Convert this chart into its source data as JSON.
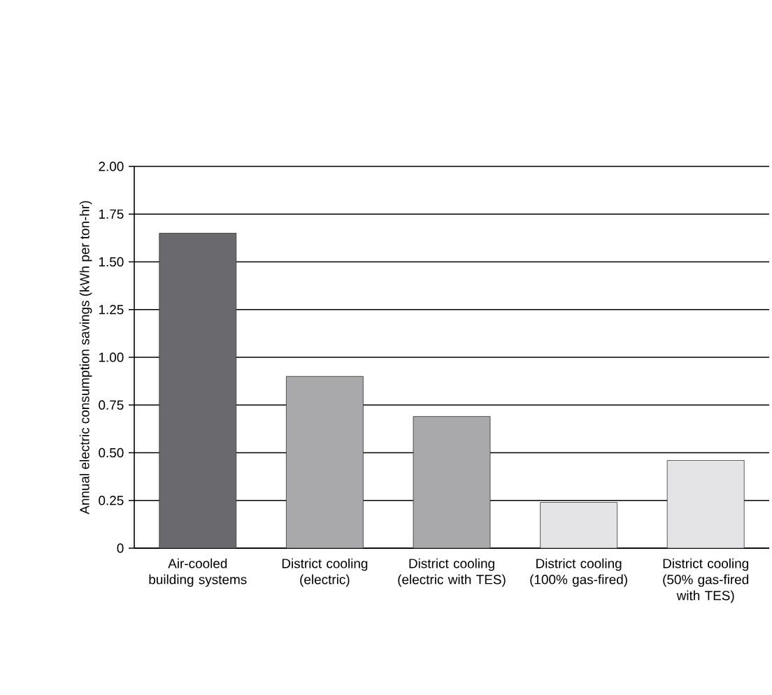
{
  "chart_data": {
    "type": "bar",
    "ylabel": "Annual electric consumption savings (kWh per ton-hr)",
    "categories": [
      "Air-cooled building systems",
      "District cooling (electric)",
      "District cooling (electric with TES)",
      "District cooling (100% gas-fired)",
      "District cooling (50% gas-fired with TES)"
    ],
    "values": [
      1.65,
      0.9,
      0.69,
      0.24,
      0.46
    ],
    "colors": [
      "#6a6a6e",
      "#a9a9ac",
      "#a9a9ac",
      "#e4e4e6",
      "#e4e4e6"
    ],
    "ylim": [
      0,
      2.0
    ],
    "yticks": [
      {
        "value": 0,
        "label": "0"
      },
      {
        "value": 0.25,
        "label": "0.25"
      },
      {
        "value": 0.5,
        "label": "0.50"
      },
      {
        "value": 0.75,
        "label": "0.75"
      },
      {
        "value": 1.0,
        "label": "1.00"
      },
      {
        "value": 1.25,
        "label": "1.25"
      },
      {
        "value": 1.5,
        "label": "1.50"
      },
      {
        "value": 1.75,
        "label": "1.75"
      },
      {
        "value": 2.0,
        "label": "2.00"
      }
    ],
    "grid": "y"
  }
}
